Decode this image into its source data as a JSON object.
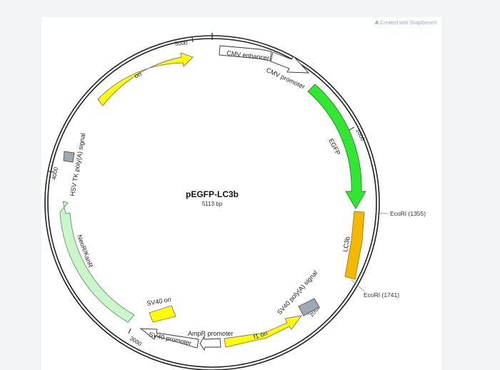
{
  "map": {
    "name": "pEGFP-LC3b",
    "length_label": "5113 bp",
    "watermark": "Created with SnapGene®",
    "ticks": [
      {
        "label": "1000"
      },
      {
        "label": "2000"
      },
      {
        "label": "3000"
      },
      {
        "label": "4000"
      },
      {
        "label": "5000"
      }
    ],
    "features": [
      {
        "name": "CMV enhancer",
        "color": "#ffffff"
      },
      {
        "name": "CMV promoter",
        "color": "#ffffff"
      },
      {
        "name": "EGFP",
        "color": "#33e633"
      },
      {
        "name": "LC3b",
        "color": "#f5b800"
      },
      {
        "name": "SV40 poly(A) signal",
        "color": "#a0a8b0"
      },
      {
        "name": "f1 ori",
        "color": "#ffff00"
      },
      {
        "name": "AmpR promoter",
        "color": "#ffffff"
      },
      {
        "name": "SV40 promoter",
        "color": "#ffffff"
      },
      {
        "name": "SV40 ori",
        "color": "#ffff00"
      },
      {
        "name": "NeoR/KanR",
        "color": "#ccf5cc"
      },
      {
        "name": "HSV TK poly(A) signal",
        "color": "#a0a8b0"
      },
      {
        "name": "ori",
        "color": "#ffff00"
      }
    ],
    "sites": [
      {
        "label": "EcoRI  (1355)"
      },
      {
        "label": "EcoRI  (1741)"
      }
    ]
  }
}
